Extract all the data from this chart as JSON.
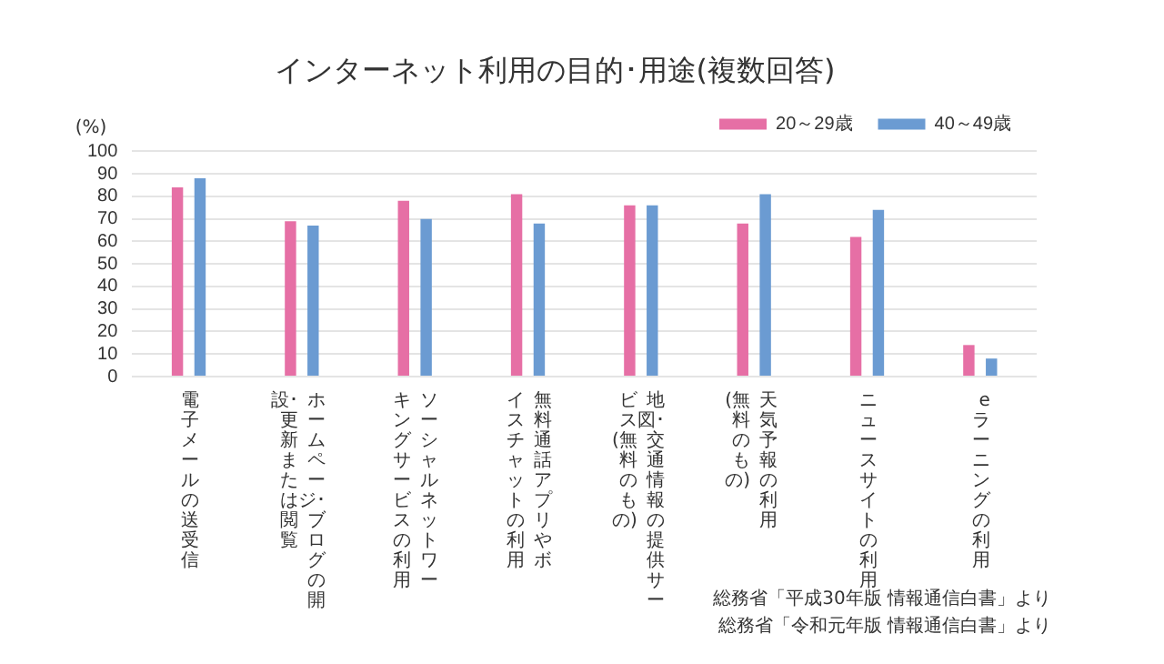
{
  "chart_data": {
    "type": "bar",
    "title": "インターネット利用の目的･用途(複数回答)",
    "ylabel": "(%)",
    "categories": [
      "電子メールの送受信",
      "ホームページ･ブログの開設･更新または閲覧",
      "ソーシャルネットワーキングサービスの利用",
      "無料通話アプリやボイスチャットの利用",
      "地図･交通情報の提供サービス(無料のもの)",
      "天気予報の利用(無料のもの)",
      "ニュースサイトの利用",
      "eラーニングの利用"
    ],
    "series": [
      {
        "name": "20～29歳",
        "color": "#e66fa5",
        "values": [
          84,
          69,
          78,
          81,
          76,
          68,
          62,
          14
        ]
      },
      {
        "name": "40～49歳",
        "color": "#6b9bd2",
        "values": [
          88,
          67,
          70,
          68,
          76,
          81,
          74,
          8
        ]
      }
    ],
    "ylim": [
      0,
      100
    ],
    "yticks": [
      0,
      10,
      20,
      30,
      40,
      50,
      60,
      70,
      80,
      90,
      100
    ],
    "grid": "y",
    "legend": "top right",
    "annotations": [
      "総務省「平成30年版 情報通信白書」より",
      "総務省「令和元年版 情報通信白書」より"
    ]
  }
}
